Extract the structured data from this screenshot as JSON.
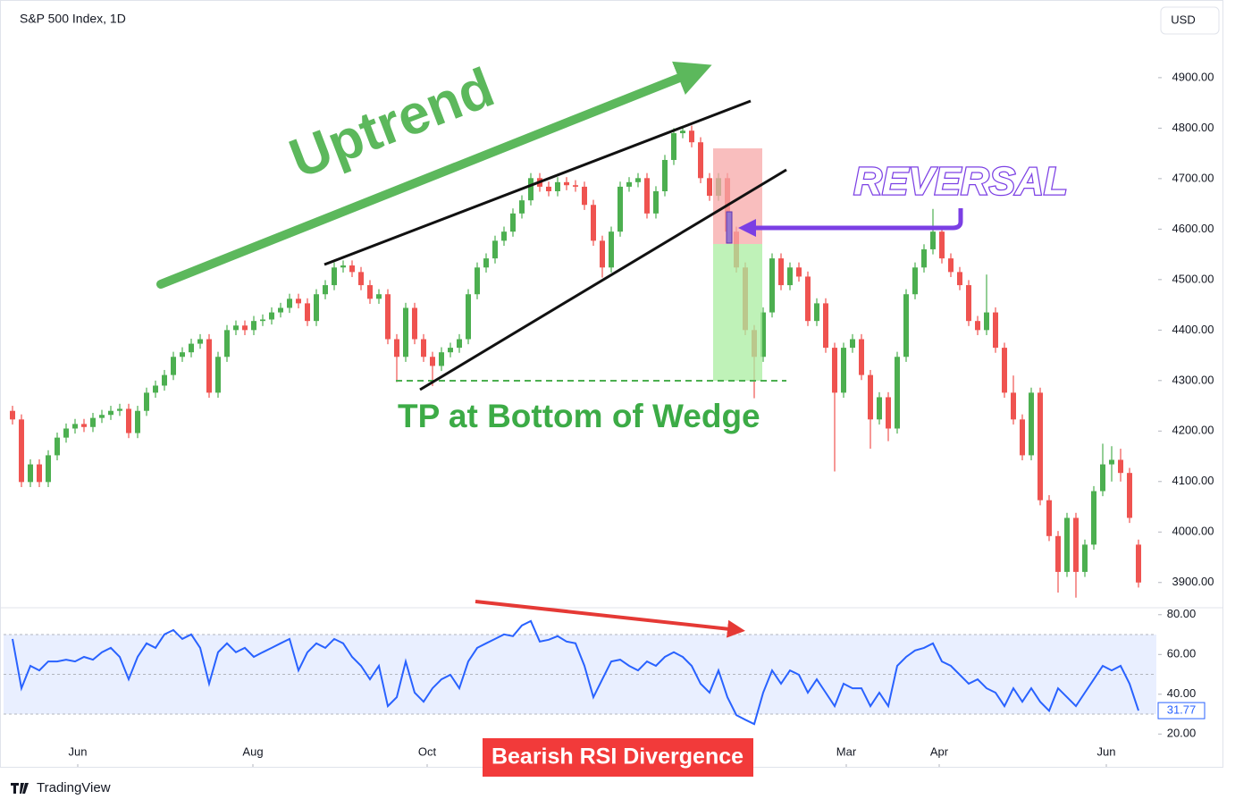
{
  "chart_data": {
    "type": "candlestick",
    "title": "S&P 500 Index, 1D",
    "currency": "USD",
    "up_color": "#4caf50",
    "down_color": "#ef5350",
    "xlim": [
      -1,
      128
    ],
    "xticks": [
      {
        "value": 7.3,
        "label": "Jun"
      },
      {
        "value": 26.9,
        "label": "Aug"
      },
      {
        "value": 46.4,
        "label": "Oct"
      },
      {
        "value": 93.3,
        "label": "Mar"
      },
      {
        "value": 103.7,
        "label": "Apr"
      },
      {
        "value": 122.4,
        "label": "Jun"
      }
    ],
    "ylim": [
      3850,
      5045
    ],
    "yticks": [
      {
        "value": 3900,
        "label": "3900.00"
      },
      {
        "value": 4000,
        "label": "4000.00"
      },
      {
        "value": 4100,
        "label": "4100.00"
      },
      {
        "value": 4200,
        "label": "4200.00"
      },
      {
        "value": 4300,
        "label": "4300.00"
      },
      {
        "value": 4400,
        "label": "4400.00"
      },
      {
        "value": 4500,
        "label": "4500.00"
      },
      {
        "value": 4600,
        "label": "4600.00"
      },
      {
        "value": 4700,
        "label": "4700.00"
      },
      {
        "value": 4800,
        "label": "4800.00"
      },
      {
        "value": 4900,
        "label": "4900.00"
      }
    ],
    "open": [
      4240,
      4223,
      4099,
      4134,
      4099,
      4152,
      4187,
      4205,
      4214,
      4208,
      4226,
      4232,
      4240,
      4244,
      4196,
      4240,
      4276,
      4290,
      4311,
      4347,
      4356,
      4373,
      4382,
      4276,
      4347,
      4400,
      4409,
      4400,
      4418,
      4421,
      4435,
      4444,
      4462,
      4453,
      4418,
      4471,
      4489,
      4524,
      4528,
      4515,
      4489,
      4462,
      4471,
      4382,
      4347,
      4444,
      4382,
      4347,
      4329,
      4356,
      4365,
      4382,
      4471,
      4524,
      4542,
      4577,
      4595,
      4631,
      4657,
      4701,
      4684,
      4675,
      4693,
      4687,
      4684,
      4648,
      4577,
      4524,
      4595,
      4684,
      4693,
      4701,
      4631,
      4675,
      4737,
      4790,
      4795,
      4772,
      4701,
      4666,
      4701,
      4595,
      4524,
      4400,
      4347,
      4435,
      4542,
      4489,
      4524,
      4506,
      4418,
      4453,
      4365,
      4276,
      4365,
      4382,
      4311,
      4223,
      4267,
      4205,
      4347,
      4471,
      4524,
      4560,
      4595,
      4542,
      4515,
      4489,
      4418,
      4400,
      4435,
      4365,
      4276,
      4223,
      4152,
      4276,
      4063,
      3992,
      3921,
      4028,
      3921,
      3975,
      4081,
      4134,
      4143,
      4117,
      3975
    ],
    "high": [
      4250,
      4233,
      4144,
      4144,
      4162,
      4197,
      4215,
      4224,
      4224,
      4236,
      4242,
      4250,
      4254,
      4254,
      4250,
      4286,
      4300,
      4321,
      4357,
      4366,
      4383,
      4392,
      4392,
      4357,
      4410,
      4419,
      4419,
      4428,
      4431,
      4445,
      4454,
      4472,
      4472,
      4463,
      4481,
      4499,
      4534,
      4538,
      4538,
      4525,
      4499,
      4481,
      4481,
      4392,
      4454,
      4454,
      4392,
      4357,
      4366,
      4375,
      4392,
      4481,
      4534,
      4552,
      4587,
      4605,
      4641,
      4667,
      4711,
      4711,
      4694,
      4703,
      4703,
      4697,
      4694,
      4658,
      4587,
      4605,
      4694,
      4703,
      4711,
      4711,
      4685,
      4747,
      4800,
      4805,
      4805,
      4782,
      4711,
      4711,
      4711,
      4605,
      4534,
      4410,
      4445,
      4552,
      4552,
      4534,
      4534,
      4516,
      4463,
      4463,
      4375,
      4375,
      4392,
      4392,
      4321,
      4277,
      4277,
      4357,
      4481,
      4534,
      4570,
      4640,
      4605,
      4552,
      4525,
      4499,
      4428,
      4510,
      4445,
      4375,
      4310,
      4233,
      4286,
      4286,
      4073,
      4002,
      4038,
      4038,
      3985,
      4091,
      4175,
      4170,
      4165,
      4127,
      3985
    ],
    "low": [
      4213,
      4089,
      4089,
      4089,
      4089,
      4142,
      4177,
      4195,
      4198,
      4198,
      4216,
      4222,
      4230,
      4186,
      4186,
      4230,
      4266,
      4280,
      4301,
      4337,
      4346,
      4363,
      4266,
      4266,
      4337,
      4390,
      4390,
      4390,
      4408,
      4411,
      4425,
      4434,
      4443,
      4408,
      4408,
      4461,
      4479,
      4514,
      4505,
      4479,
      4452,
      4452,
      4372,
      4297,
      4337,
      4372,
      4337,
      4289,
      4319,
      4346,
      4355,
      4372,
      4461,
      4514,
      4532,
      4567,
      4585,
      4621,
      4647,
      4674,
      4665,
      4665,
      4677,
      4674,
      4638,
      4567,
      4504,
      4514,
      4585,
      4674,
      4683,
      4621,
      4621,
      4665,
      4727,
      4780,
      4762,
      4691,
      4656,
      4656,
      4585,
      4514,
      4390,
      4265,
      4337,
      4425,
      4479,
      4479,
      4496,
      4408,
      4408,
      4355,
      4120,
      4266,
      4355,
      4301,
      4165,
      4213,
      4180,
      4195,
      4337,
      4461,
      4514,
      4550,
      4532,
      4505,
      4479,
      4408,
      4390,
      4390,
      4355,
      4266,
      4213,
      4142,
      4142,
      4053,
      3982,
      3880,
      3911,
      3870,
      3911,
      3965,
      4071,
      4100,
      4100,
      4018,
      3890
    ],
    "close": [
      4223,
      4099,
      4134,
      4099,
      4152,
      4187,
      4205,
      4214,
      4208,
      4226,
      4232,
      4240,
      4244,
      4196,
      4240,
      4276,
      4290,
      4311,
      4347,
      4356,
      4373,
      4382,
      4276,
      4347,
      4400,
      4409,
      4400,
      4418,
      4421,
      4435,
      4444,
      4462,
      4453,
      4418,
      4471,
      4489,
      4524,
      4528,
      4515,
      4489,
      4462,
      4471,
      4382,
      4347,
      4444,
      4382,
      4347,
      4329,
      4356,
      4365,
      4382,
      4471,
      4524,
      4542,
      4577,
      4595,
      4631,
      4657,
      4701,
      4684,
      4675,
      4693,
      4687,
      4684,
      4648,
      4577,
      4524,
      4595,
      4684,
      4693,
      4701,
      4631,
      4675,
      4737,
      4790,
      4795,
      4772,
      4701,
      4666,
      4701,
      4595,
      4524,
      4400,
      4347,
      4435,
      4542,
      4489,
      4524,
      4506,
      4418,
      4453,
      4365,
      4276,
      4365,
      4382,
      4311,
      4223,
      4267,
      4205,
      4347,
      4471,
      4524,
      4560,
      4595,
      4542,
      4515,
      4489,
      4418,
      4400,
      4435,
      4365,
      4276,
      4223,
      4152,
      4276,
      4063,
      3992,
      3921,
      4028,
      3921,
      3975,
      4081,
      4134,
      4143,
      4117,
      4028,
      3900
    ],
    "rsi": {
      "color": "#2962ff",
      "band": [
        30,
        70
      ],
      "midline": 50,
      "ylim": [
        3.5,
        83.5
      ],
      "yticks": [
        {
          "value": 20,
          "label": "20.00"
        },
        {
          "value": 40,
          "label": "40.00"
        },
        {
          "value": 60,
          "label": "60.00"
        },
        {
          "value": 80,
          "label": "80.00"
        }
      ],
      "values": [
        67.8,
        43.0,
        54.3,
        52.0,
        56.5,
        56.5,
        57.4,
        56.5,
        58.8,
        57.4,
        61.1,
        63.3,
        58.8,
        47.5,
        58.8,
        65.6,
        63.3,
        70.1,
        72.3,
        67.8,
        70.1,
        63.3,
        45.3,
        61.1,
        65.6,
        61.1,
        63.3,
        58.8,
        61.1,
        63.3,
        65.6,
        67.8,
        52.0,
        61.1,
        65.6,
        63.3,
        67.8,
        65.6,
        58.8,
        54.3,
        47.5,
        54.3,
        34.0,
        38.5,
        56.5,
        40.8,
        36.2,
        43.0,
        47.5,
        49.8,
        43.0,
        56.5,
        63.3,
        65.6,
        67.8,
        70.1,
        69.2,
        74.6,
        76.8,
        66.5,
        67.4,
        69.2,
        66.5,
        65.6,
        54.3,
        38.5,
        47.5,
        56.5,
        57.4,
        54.3,
        52.0,
        56.5,
        54.3,
        58.8,
        61.1,
        58.8,
        54.3,
        45.3,
        40.8,
        52.0,
        38.5,
        29.5,
        27.2,
        25.0,
        40.8,
        52.0,
        45.3,
        52.0,
        49.8,
        40.8,
        47.5,
        40.8,
        34.0,
        45.3,
        43.0,
        43.0,
        34.0,
        40.8,
        34.0,
        54.3,
        58.8,
        62.0,
        63.3,
        65.6,
        56.5,
        54.3,
        49.8,
        45.3,
        47.5,
        43.0,
        40.8,
        34.0,
        43.0,
        36.2,
        43.0,
        36.2,
        31.7,
        43.0,
        38.5,
        34.0,
        40.8,
        47.5,
        54.3,
        52.0,
        54.3,
        45.3,
        31.77
      ]
    },
    "annotations": {
      "uptrend": "Uptrend",
      "reversal": "REVERSAL",
      "target": "TP at Bottom of Wedge",
      "divergence": "Bearish RSI Divergence"
    },
    "branding": "TradingView"
  }
}
